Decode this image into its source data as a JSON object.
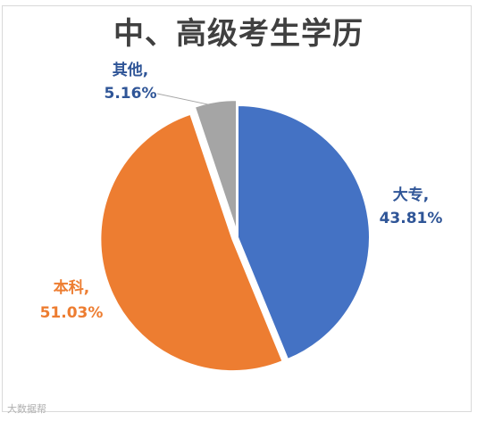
{
  "chart_data": {
    "type": "pie",
    "title": "中、高级考生学历",
    "slices": [
      {
        "category": "大专",
        "value": 43.81,
        "label": "43.81%",
        "color": "#4472c4",
        "label_color": "#2f5597",
        "exploded": false
      },
      {
        "category": "本科",
        "value": 51.03,
        "label": "51.03%",
        "color": "#ed7d31",
        "label_color": "#ed7d31",
        "exploded": true
      },
      {
        "category": "其他",
        "value": 5.16,
        "label": "5.16%",
        "color": "#a5a5a5",
        "label_color": "#2f5597",
        "exploded": true
      }
    ],
    "start": "12 o'clock",
    "direction": "clockwise",
    "legend": "none",
    "data_labels": "category, percentage"
  },
  "watermark": "大数据帮"
}
